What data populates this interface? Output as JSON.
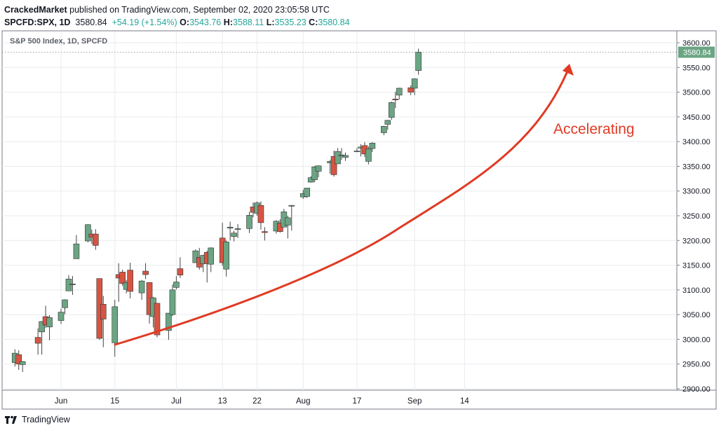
{
  "header": {
    "publisher": "CrackedMarket",
    "published_text": "published on TradingView.com, September 02, 2020 23:05:58 UTC",
    "symbol": "SPCFD:SPX, 1D",
    "last": "3580.84",
    "change": "+54.19 (+1.54%)",
    "open_label": "O:",
    "open": "3543.76",
    "high_label": "H:",
    "high": "3588.11",
    "low_label": "L:",
    "low": "3535.23",
    "close_label": "C:",
    "close": "3580.84"
  },
  "footer": {
    "brand": "TradingView"
  },
  "chart_data": {
    "type": "candlestick",
    "title": "S&P 500 Index, 1D, SPCFD",
    "annotation": "Accelerating",
    "last_price_label": "3580.84",
    "ylim": [
      2900,
      3600
    ],
    "y_ticks": [
      2900,
      2950,
      3000,
      3050,
      3100,
      3150,
      3200,
      3250,
      3300,
      3350,
      3400,
      3450,
      3500,
      3550,
      3600
    ],
    "y_tick_labels": [
      "2900.00",
      "2950.00",
      "3000.00",
      "3050.00",
      "3100.00",
      "3150.00",
      "3200.00",
      "3250.00",
      "3300.00",
      "3350.00",
      "3400.00",
      "3450.00",
      "3500.00",
      "3550.00",
      "3600.00"
    ],
    "x_ticks": [
      {
        "label": "Jun",
        "date": "2020-06-01"
      },
      {
        "label": "15",
        "date": "2020-06-15"
      },
      {
        "label": "Jul",
        "date": "2020-07-01"
      },
      {
        "label": "13",
        "date": "2020-07-13"
      },
      {
        "label": "22",
        "date": "2020-07-22"
      },
      {
        "label": "Aug",
        "date": "2020-08-03"
      },
      {
        "label": "17",
        "date": "2020-08-17"
      },
      {
        "label": "Sep",
        "date": "2020-09-01"
      },
      {
        "label": "14",
        "date": "2020-09-14"
      }
    ],
    "colors": {
      "up": "#6ba583",
      "down": "#d75442",
      "wick": "#444444",
      "arrow": "#e03b24",
      "grid": "#e9ebee"
    },
    "candles": [
      {
        "date": "2020-05-20",
        "o": 2953,
        "h": 2980,
        "l": 2945,
        "c": 2972
      },
      {
        "date": "2020-05-21",
        "o": 2969,
        "h": 2978,
        "l": 2938,
        "c": 2950
      },
      {
        "date": "2020-05-22",
        "o": 2949,
        "h": 2956,
        "l": 2934,
        "c": 2955
      },
      {
        "date": "2020-05-26",
        "o": 3004,
        "h": 3022,
        "l": 2969,
        "c": 2992
      },
      {
        "date": "2020-05-27",
        "o": 3015,
        "h": 3037,
        "l": 2969,
        "c": 3036
      },
      {
        "date": "2020-05-28",
        "o": 3046,
        "h": 3068,
        "l": 3023,
        "c": 3029
      },
      {
        "date": "2020-05-29",
        "o": 3025,
        "h": 3049,
        "l": 2998,
        "c": 3044
      },
      {
        "date": "2020-06-01",
        "o": 3038,
        "h": 3062,
        "l": 3031,
        "c": 3055
      },
      {
        "date": "2020-06-02",
        "o": 3064,
        "h": 3081,
        "l": 3051,
        "c": 3080
      },
      {
        "date": "2020-06-03",
        "o": 3098,
        "h": 3130,
        "l": 3098,
        "c": 3122
      },
      {
        "date": "2020-06-04",
        "o": 3111,
        "h": 3128,
        "l": 3090,
        "c": 3112
      },
      {
        "date": "2020-06-05",
        "o": 3163,
        "h": 3211,
        "l": 3163,
        "c": 3193
      },
      {
        "date": "2020-06-08",
        "o": 3199,
        "h": 3233,
        "l": 3196,
        "c": 3232
      },
      {
        "date": "2020-06-09",
        "o": 3213,
        "h": 3222,
        "l": 3193,
        "c": 3207
      },
      {
        "date": "2020-06-10",
        "o": 3213,
        "h": 3223,
        "l": 3181,
        "c": 3190
      },
      {
        "date": "2020-06-11",
        "o": 3123,
        "h": 3123,
        "l": 2999,
        "c": 3002
      },
      {
        "date": "2020-06-12",
        "o": 3071,
        "h": 3088,
        "l": 2984,
        "c": 3041
      },
      {
        "date": "2020-06-15",
        "o": 2993,
        "h": 3080,
        "l": 2965,
        "c": 3066
      },
      {
        "date": "2020-06-16",
        "o": 3131,
        "h": 3154,
        "l": 3076,
        "c": 3124
      },
      {
        "date": "2020-06-17",
        "o": 3136,
        "h": 3141,
        "l": 3108,
        "c": 3113
      },
      {
        "date": "2020-06-18",
        "o": 3101,
        "h": 3120,
        "l": 3093,
        "c": 3115
      },
      {
        "date": "2020-06-19",
        "o": 3140,
        "h": 3155,
        "l": 3083,
        "c": 3097
      },
      {
        "date": "2020-06-22",
        "o": 3094,
        "h": 3120,
        "l": 3080,
        "c": 3118
      },
      {
        "date": "2020-06-23",
        "o": 3138,
        "h": 3154,
        "l": 3122,
        "c": 3131
      },
      {
        "date": "2020-06-24",
        "o": 3115,
        "h": 3115,
        "l": 3032,
        "c": 3050
      },
      {
        "date": "2020-06-25",
        "o": 3046,
        "h": 3086,
        "l": 3024,
        "c": 3084
      },
      {
        "date": "2020-06-26",
        "o": 3073,
        "h": 3073,
        "l": 3004,
        "c": 3009
      },
      {
        "date": "2020-06-29",
        "o": 3018,
        "h": 3053,
        "l": 2999,
        "c": 3053
      },
      {
        "date": "2020-06-30",
        "o": 3050,
        "h": 3111,
        "l": 3047,
        "c": 3100
      },
      {
        "date": "2020-07-01",
        "o": 3105,
        "h": 3128,
        "l": 3101,
        "c": 3116
      },
      {
        "date": "2020-07-02",
        "o": 3143,
        "h": 3166,
        "l": 3124,
        "c": 3130
      },
      {
        "date": "2020-07-06",
        "o": 3155,
        "h": 3182,
        "l": 3155,
        "c": 3179
      },
      {
        "date": "2020-07-07",
        "o": 3166,
        "h": 3185,
        "l": 3141,
        "c": 3146
      },
      {
        "date": "2020-07-08",
        "o": 3153,
        "h": 3171,
        "l": 3136,
        "c": 3170
      },
      {
        "date": "2020-07-09",
        "o": 3176,
        "h": 3179,
        "l": 3115,
        "c": 3153
      },
      {
        "date": "2020-07-10",
        "o": 3152,
        "h": 3186,
        "l": 3136,
        "c": 3185
      },
      {
        "date": "2020-07-13",
        "o": 3205,
        "h": 3236,
        "l": 3149,
        "c": 3155
      },
      {
        "date": "2020-07-14",
        "o": 3142,
        "h": 3200,
        "l": 3127,
        "c": 3197
      },
      {
        "date": "2020-07-15",
        "o": 3225,
        "h": 3238,
        "l": 3200,
        "c": 3227
      },
      {
        "date": "2020-07-16",
        "o": 3208,
        "h": 3220,
        "l": 3198,
        "c": 3215
      },
      {
        "date": "2020-07-17",
        "o": 3224,
        "h": 3233,
        "l": 3205,
        "c": 3224
      },
      {
        "date": "2020-07-20",
        "o": 3224,
        "h": 3258,
        "l": 3215,
        "c": 3251
      },
      {
        "date": "2020-07-21",
        "o": 3268,
        "h": 3277,
        "l": 3247,
        "c": 3257
      },
      {
        "date": "2020-07-22",
        "o": 3255,
        "h": 3279,
        "l": 3250,
        "c": 3276
      },
      {
        "date": "2020-07-23",
        "o": 3271,
        "h": 3279,
        "l": 3222,
        "c": 3236
      },
      {
        "date": "2020-07-24",
        "o": 3218,
        "h": 3227,
        "l": 3200,
        "c": 3216
      },
      {
        "date": "2020-07-27",
        "o": 3219,
        "h": 3241,
        "l": 3214,
        "c": 3239
      },
      {
        "date": "2020-07-28",
        "o": 3235,
        "h": 3243,
        "l": 3216,
        "c": 3218
      },
      {
        "date": "2020-07-29",
        "o": 3227,
        "h": 3264,
        "l": 3227,
        "c": 3258
      },
      {
        "date": "2020-07-30",
        "o": 3231,
        "h": 3250,
        "l": 3204,
        "c": 3246
      },
      {
        "date": "2020-07-31",
        "o": 3270,
        "h": 3272,
        "l": 3220,
        "c": 3271
      },
      {
        "date": "2020-08-03",
        "o": 3288,
        "h": 3302,
        "l": 3284,
        "c": 3295
      },
      {
        "date": "2020-08-04",
        "o": 3289,
        "h": 3306,
        "l": 3286,
        "c": 3306
      },
      {
        "date": "2020-08-05",
        "o": 3318,
        "h": 3330,
        "l": 3317,
        "c": 3327
      },
      {
        "date": "2020-08-06",
        "o": 3323,
        "h": 3351,
        "l": 3318,
        "c": 3349
      },
      {
        "date": "2020-08-07",
        "o": 3340,
        "h": 3352,
        "l": 3328,
        "c": 3351
      },
      {
        "date": "2020-08-10",
        "o": 3357,
        "h": 3363,
        "l": 3335,
        "c": 3360
      },
      {
        "date": "2020-08-11",
        "o": 3370,
        "h": 3382,
        "l": 3329,
        "c": 3333
      },
      {
        "date": "2020-08-12",
        "o": 3355,
        "h": 3387,
        "l": 3355,
        "c": 3380
      },
      {
        "date": "2020-08-13",
        "o": 3372,
        "h": 3387,
        "l": 3363,
        "c": 3373
      },
      {
        "date": "2020-08-14",
        "o": 3368,
        "h": 3378,
        "l": 3361,
        "c": 3372
      },
      {
        "date": "2020-08-17",
        "o": 3380,
        "h": 3387,
        "l": 3379,
        "c": 3381
      },
      {
        "date": "2020-08-18",
        "o": 3387,
        "h": 3395,
        "l": 3370,
        "c": 3389
      },
      {
        "date": "2020-08-19",
        "o": 3392,
        "h": 3399,
        "l": 3369,
        "c": 3375
      },
      {
        "date": "2020-08-20",
        "o": 3360,
        "h": 3390,
        "l": 3354,
        "c": 3385
      },
      {
        "date": "2020-08-21",
        "o": 3386,
        "h": 3399,
        "l": 3379,
        "c": 3397
      },
      {
        "date": "2020-08-24",
        "o": 3418,
        "h": 3432,
        "l": 3413,
        "c": 3431
      },
      {
        "date": "2020-08-25",
        "o": 3435,
        "h": 3444,
        "l": 3424,
        "c": 3443
      },
      {
        "date": "2020-08-26",
        "o": 3449,
        "h": 3481,
        "l": 3444,
        "c": 3479
      },
      {
        "date": "2020-08-27",
        "o": 3486,
        "h": 3501,
        "l": 3468,
        "c": 3485
      },
      {
        "date": "2020-08-28",
        "o": 3494,
        "h": 3509,
        "l": 3485,
        "c": 3508
      },
      {
        "date": "2020-08-31",
        "o": 3509,
        "h": 3514,
        "l": 3494,
        "c": 3500
      },
      {
        "date": "2020-09-01",
        "o": 3508,
        "h": 3528,
        "l": 3494,
        "c": 3527
      },
      {
        "date": "2020-09-02",
        "o": 3543.76,
        "h": 3588.11,
        "l": 3535.23,
        "c": 3580.84
      }
    ]
  }
}
